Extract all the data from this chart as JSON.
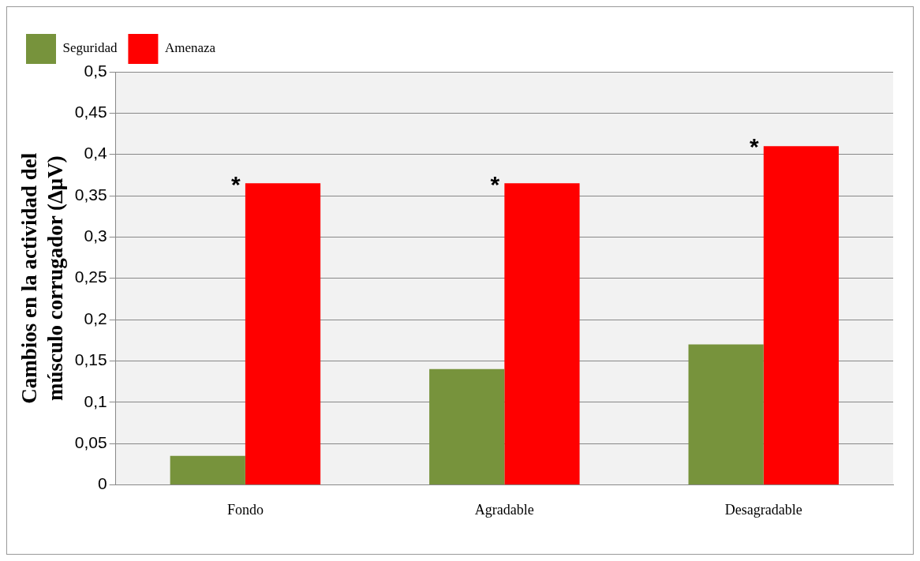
{
  "chart_data": {
    "type": "bar",
    "ylabel": "Cambios en la actividad del músculo corrugador (ΔμV)",
    "categories": [
      "Fondo",
      "Agradable",
      "Desagradable"
    ],
    "series": [
      {
        "name": "Seguridad",
        "color": "#77933c",
        "values": [
          0.035,
          0.14,
          0.17
        ]
      },
      {
        "name": "Amenaza",
        "color": "#ff0000",
        "values": [
          0.365,
          0.365,
          0.41
        ]
      }
    ],
    "ylim": [
      0,
      0.5
    ],
    "yticks": [
      {
        "value": 0,
        "label": "0"
      },
      {
        "value": 0.05,
        "label": "0,05"
      },
      {
        "value": 0.1,
        "label": "0,1"
      },
      {
        "value": 0.15,
        "label": "0,15"
      },
      {
        "value": 0.2,
        "label": "0,2"
      },
      {
        "value": 0.25,
        "label": "0,25"
      },
      {
        "value": 0.3,
        "label": "0,3"
      },
      {
        "value": 0.35,
        "label": "0,35"
      },
      {
        "value": 0.4,
        "label": "0,4"
      },
      {
        "value": 0.45,
        "label": "0,45"
      },
      {
        "value": 0.5,
        "label": "0,5"
      }
    ],
    "grid": "y",
    "legend": "top left",
    "annotations": [
      {
        "text": "*",
        "x": "Fondo",
        "y": 0.365
      },
      {
        "text": "*",
        "x": "Agradable",
        "y": 0.365
      },
      {
        "text": "*",
        "x": "Desagradable",
        "y": 0.41
      }
    ]
  }
}
